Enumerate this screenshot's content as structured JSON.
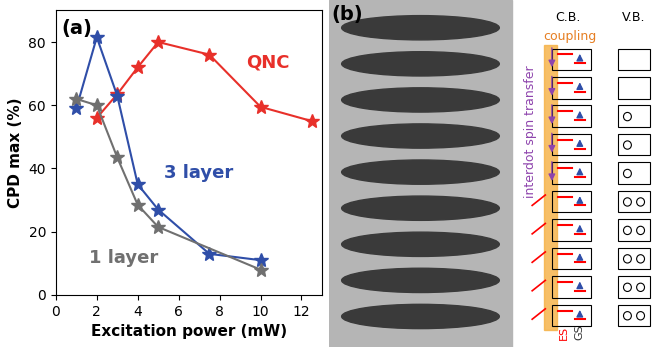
{
  "chart_data": {
    "type": "line",
    "title": "(a)",
    "x_label": "Excitation power (mW)",
    "y_label": "CPD max (%)",
    "xlim": [
      0,
      13
    ],
    "xticks": [
      0,
      2,
      4,
      6,
      8,
      10,
      12
    ],
    "ylim": [
      0,
      90
    ],
    "yticks": [
      0,
      20,
      40,
      60,
      80
    ],
    "marker": "star",
    "series": [
      {
        "name": "QNC",
        "color": "#e8302a",
        "x": [
          2,
          3,
          4,
          5,
          7.5,
          10,
          12.5
        ],
        "values": [
          56,
          63.5,
          72,
          80,
          76,
          59.5,
          55
        ]
      },
      {
        "name": "3 layer",
        "color": "#2f4ea8",
        "x": [
          1,
          2,
          3,
          4,
          5,
          7.5,
          10
        ],
        "values": [
          59,
          81.5,
          63,
          35,
          27,
          13,
          11
        ]
      },
      {
        "name": "1 layer",
        "color": "#707070",
        "x": [
          1,
          2,
          3,
          4,
          5,
          10
        ],
        "values": [
          62,
          60,
          43.5,
          28.5,
          21.5,
          8
        ]
      }
    ]
  },
  "diagram": {
    "panel_label": "(b)",
    "conduction_band": "C.B.",
    "valence_band": "V.B.",
    "coupling": "coupling",
    "transfer": "interdot spin transfer",
    "excited_state": "ES",
    "ground_state": "GS"
  }
}
